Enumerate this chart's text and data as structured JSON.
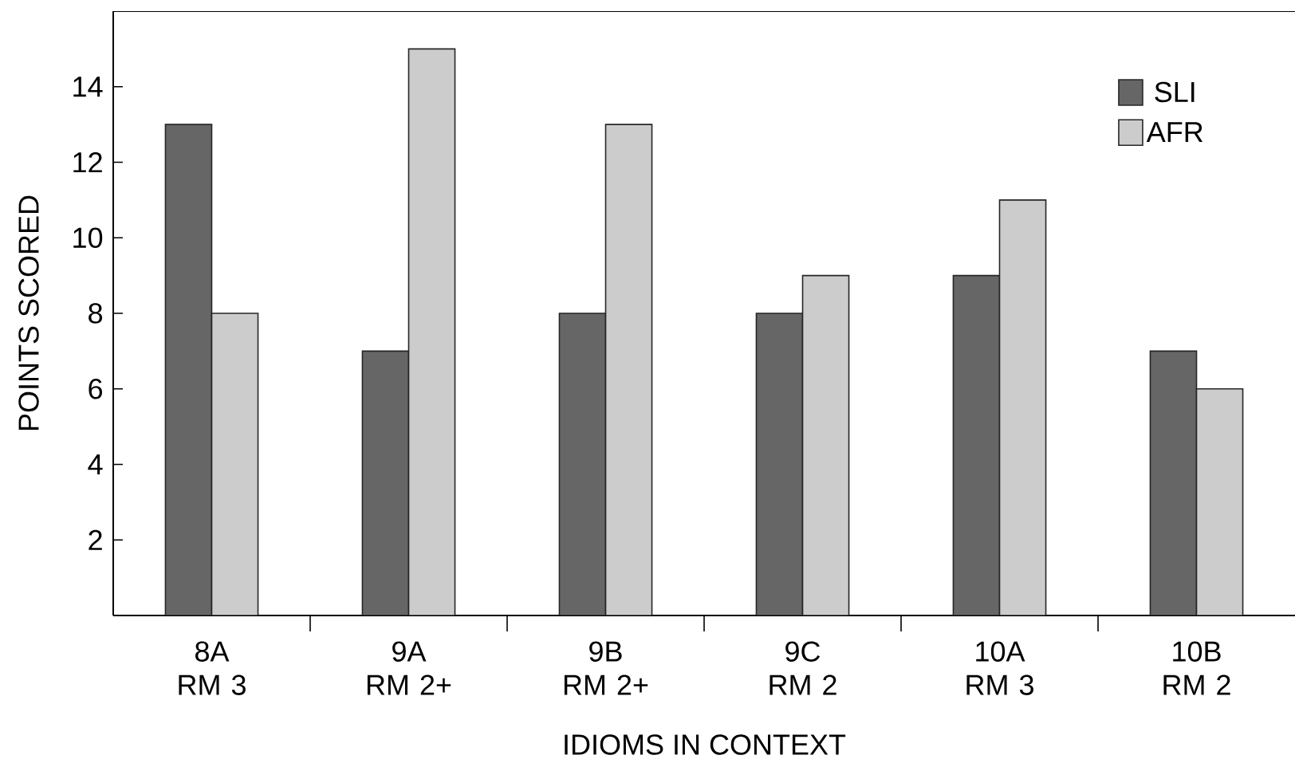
{
  "chart_data": {
    "type": "bar",
    "xlabel": "IDIOMS IN CONTEXT",
    "ylabel": "POINTS SCORED",
    "categories": [
      "8A RM 3",
      "9A RM 2+",
      "9B RM 2+",
      "9C RM 2",
      "10A RM 3",
      "10B RM 2"
    ],
    "series": [
      {
        "name": "SLI",
        "color": "#666666",
        "values": [
          13,
          7,
          8,
          8,
          9,
          7
        ]
      },
      {
        "name": "AFR",
        "color": "#cccccc",
        "values": [
          8,
          15,
          13,
          9,
          11,
          6
        ]
      }
    ],
    "ylim": [
      0,
      16
    ],
    "yticks": [
      2,
      4,
      6,
      8,
      10,
      12,
      14
    ],
    "grid": false,
    "legend": "top right"
  }
}
